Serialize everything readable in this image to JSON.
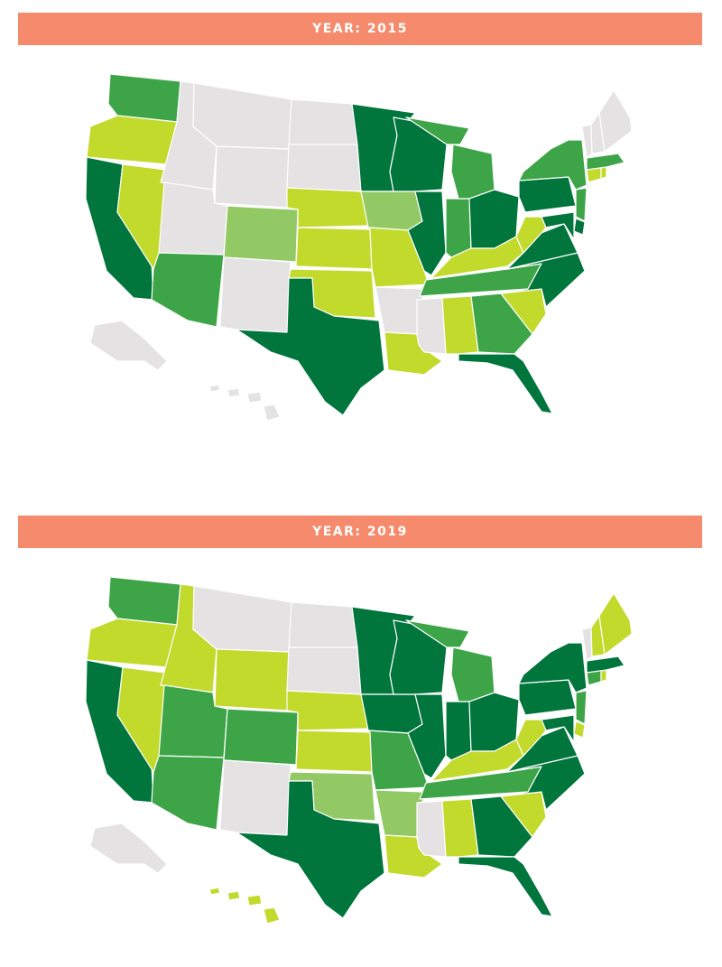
{
  "maps": [
    {
      "title": "YEAR: 2015",
      "colors": {
        "WA": "#3da548",
        "OR": "#c2da2c",
        "CA": "#00753c",
        "NV": "#c2da2c",
        "ID": "#e4e2e3",
        "MT": "#e4e2e3",
        "WY": "#e4e2e3",
        "UT": "#e4e2e3",
        "AZ": "#3da548",
        "CO": "#93c964",
        "NM": "#e4e2e3",
        "ND": "#e4e2e3",
        "SD": "#e4e2e3",
        "NE": "#c2da2c",
        "KS": "#c2da2c",
        "OK": "#c2da2c",
        "TX": "#00753c",
        "MN": "#00753c",
        "IA": "#93c964",
        "MO": "#c2da2c",
        "AR": "#e4e2e3",
        "LA": "#c2da2c",
        "WI": "#00753c",
        "IL": "#00753c",
        "MI": "#3da548",
        "IN": "#3da548",
        "OH": "#00753c",
        "KY": "#c2da2c",
        "TN": "#3da548",
        "MS": "#e4e2e3",
        "AL": "#c2da2c",
        "GA": "#3da548",
        "FL": "#00753c",
        "SC": "#c2da2c",
        "NC": "#00753c",
        "VA": "#00753c",
        "WV": "#c2da2c",
        "PA": "#00753c",
        "NY": "#3da548",
        "NJ": "#3da548",
        "DE": "#00753c",
        "MD": "#00753c",
        "CT": "#c2da2c",
        "RI": "#c2da2c",
        "MA": "#3da548",
        "VT": "#e4e2e3",
        "NH": "#e4e2e3",
        "ME": "#e4e2e3",
        "AK": "#e4e2e3",
        "HI": "#e4e2e3"
      }
    },
    {
      "title": "YEAR: 2019",
      "colors": {
        "WA": "#3da548",
        "OR": "#c2da2c",
        "CA": "#00753c",
        "NV": "#c2da2c",
        "ID": "#c2da2c",
        "MT": "#e4e2e3",
        "WY": "#c2da2c",
        "UT": "#3da548",
        "AZ": "#3da548",
        "CO": "#3da548",
        "NM": "#e4e2e3",
        "ND": "#e4e2e3",
        "SD": "#e4e2e3",
        "NE": "#c2da2c",
        "KS": "#c2da2c",
        "OK": "#93c964",
        "TX": "#00753c",
        "MN": "#00753c",
        "IA": "#00753c",
        "MO": "#3da548",
        "AR": "#93c964",
        "LA": "#c2da2c",
        "WI": "#00753c",
        "IL": "#00753c",
        "MI": "#3da548",
        "IN": "#00753c",
        "OH": "#00753c",
        "KY": "#c2da2c",
        "TN": "#3da548",
        "MS": "#e4e2e3",
        "AL": "#c2da2c",
        "GA": "#00753c",
        "FL": "#00753c",
        "SC": "#c2da2c",
        "NC": "#00753c",
        "VA": "#00753c",
        "WV": "#c2da2c",
        "PA": "#00753c",
        "NY": "#00753c",
        "NJ": "#3da548",
        "DE": "#c2da2c",
        "MD": "#00753c",
        "CT": "#3da548",
        "RI": "#c2da2c",
        "MA": "#00753c",
        "VT": "#e4e2e3",
        "NH": "#c2da2c",
        "ME": "#c2da2c",
        "AK": "#e4e2e3",
        "HI": "#c2da2c"
      }
    }
  ]
}
